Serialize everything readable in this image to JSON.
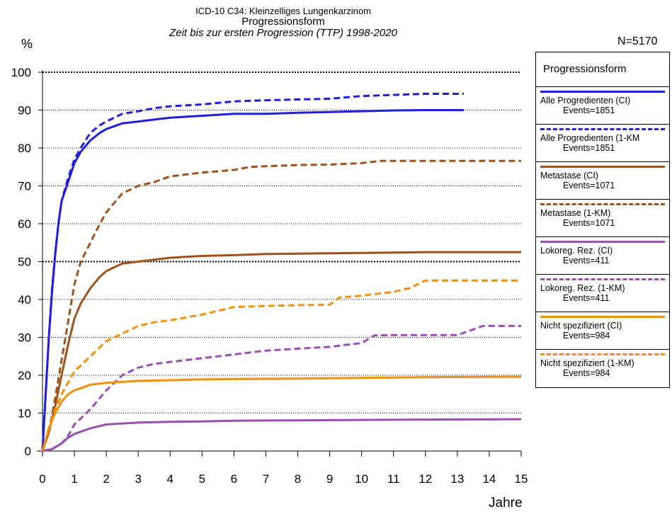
{
  "chart_data": {
    "type": "line",
    "title": "ICD-10 C34: Kleinzelliges Lungenkarzinom",
    "subtitle": "Progressionsform",
    "subtitle2": "Zeit bis zur ersten Progression (TTP) 1998-2020",
    "ylabel": "%",
    "xlabel": "Jahre",
    "n_label": "N=5170",
    "xlim": [
      0,
      15
    ],
    "ylim": [
      0,
      100
    ],
    "x_ticks": [
      "0",
      "1",
      "2",
      "3",
      "4",
      "5",
      "6",
      "7",
      "8",
      "9",
      "10",
      "11",
      "12",
      "13",
      "14",
      "15"
    ],
    "y_ticks": [
      "0",
      "10",
      "20",
      "30",
      "40",
      "50",
      "60",
      "70",
      "80",
      "90",
      "100"
    ],
    "grid": "horizontal dotted",
    "legend_title": "Progressionsform",
    "legend_position": "right",
    "series": [
      {
        "name": "Alle Progredienten (CI)",
        "events": "Events=1851",
        "color": "#1f1fe0",
        "dash": "solid",
        "points": [
          [
            0,
            0
          ],
          [
            0.1,
            15
          ],
          [
            0.2,
            30
          ],
          [
            0.3,
            42
          ],
          [
            0.4,
            52
          ],
          [
            0.5,
            60
          ],
          [
            0.6,
            66
          ],
          [
            0.8,
            71
          ],
          [
            1,
            76
          ],
          [
            1.2,
            79
          ],
          [
            1.5,
            82
          ],
          [
            1.8,
            84
          ],
          [
            2,
            85
          ],
          [
            2.5,
            86.5
          ],
          [
            3,
            87
          ],
          [
            3.5,
            87.5
          ],
          [
            4,
            88
          ],
          [
            5,
            88.5
          ],
          [
            6,
            89
          ],
          [
            7,
            89
          ],
          [
            8,
            89.3
          ],
          [
            9,
            89.5
          ],
          [
            10,
            89.7
          ],
          [
            11,
            89.9
          ],
          [
            12,
            90
          ],
          [
            13.2,
            90
          ]
        ]
      },
      {
        "name": "Alle Progredienten (1-KM",
        "events": "Events=1851",
        "color": "#1f1fe0",
        "dash": "dashed",
        "points": [
          [
            0,
            0
          ],
          [
            0.1,
            15
          ],
          [
            0.2,
            30
          ],
          [
            0.3,
            43
          ],
          [
            0.4,
            52
          ],
          [
            0.5,
            60
          ],
          [
            0.6,
            66
          ],
          [
            0.8,
            72
          ],
          [
            1,
            77
          ],
          [
            1.2,
            80
          ],
          [
            1.5,
            84
          ],
          [
            1.8,
            86
          ],
          [
            2,
            87
          ],
          [
            2.5,
            89
          ],
          [
            3,
            89.7
          ],
          [
            3.5,
            90.5
          ],
          [
            4,
            91
          ],
          [
            5,
            91.5
          ],
          [
            6,
            92.3
          ],
          [
            7,
            92.6
          ],
          [
            8,
            92.8
          ],
          [
            9,
            93
          ],
          [
            10,
            93.7
          ],
          [
            11,
            94
          ],
          [
            12,
            94.3
          ],
          [
            13.2,
            94.3
          ]
        ]
      },
      {
        "name": "Metastase (CI)",
        "events": "Events=1071",
        "color": "#a0521b",
        "dash": "solid",
        "points": [
          [
            0,
            0
          ],
          [
            0.2,
            5
          ],
          [
            0.4,
            12
          ],
          [
            0.6,
            20
          ],
          [
            0.8,
            28
          ],
          [
            1,
            35
          ],
          [
            1.2,
            39
          ],
          [
            1.5,
            43
          ],
          [
            1.8,
            46
          ],
          [
            2,
            47.5
          ],
          [
            2.5,
            49.5
          ],
          [
            3,
            50
          ],
          [
            3.5,
            50.5
          ],
          [
            4,
            51
          ],
          [
            5,
            51.5
          ],
          [
            6,
            51.7
          ],
          [
            7,
            52
          ],
          [
            8,
            52.1
          ],
          [
            9,
            52.2
          ],
          [
            10,
            52.3
          ],
          [
            11,
            52.4
          ],
          [
            12,
            52.5
          ],
          [
            13,
            52.5
          ],
          [
            15,
            52.5
          ]
        ]
      },
      {
        "name": "Metastase (1-KM)",
        "events": "Events=1071",
        "color": "#a0521b",
        "dash": "dashed",
        "points": [
          [
            0,
            0
          ],
          [
            0.2,
            5
          ],
          [
            0.4,
            14
          ],
          [
            0.6,
            24
          ],
          [
            0.8,
            34
          ],
          [
            1,
            44
          ],
          [
            1.2,
            50
          ],
          [
            1.5,
            55
          ],
          [
            1.8,
            60
          ],
          [
            2,
            63
          ],
          [
            2.5,
            68
          ],
          [
            3,
            70
          ],
          [
            3.5,
            71
          ],
          [
            4,
            72.5
          ],
          [
            5,
            73.5
          ],
          [
            6,
            74.2
          ],
          [
            6.5,
            75
          ],
          [
            7,
            75.2
          ],
          [
            8,
            75.5
          ],
          [
            9,
            75.6
          ],
          [
            10,
            76
          ],
          [
            10.6,
            76.6
          ],
          [
            11,
            76.6
          ],
          [
            13,
            76.6
          ],
          [
            15,
            76.6
          ]
        ]
      },
      {
        "name": "Lokoreg. Rez. (CI)",
        "events": "Events=411",
        "color": "#9b4fb0",
        "dash": "solid",
        "points": [
          [
            0,
            0
          ],
          [
            0.3,
            0.5
          ],
          [
            0.6,
            2
          ],
          [
            0.8,
            3.5
          ],
          [
            1,
            4.5
          ],
          [
            1.5,
            6
          ],
          [
            2,
            7
          ],
          [
            3,
            7.5
          ],
          [
            4,
            7.7
          ],
          [
            5,
            7.8
          ],
          [
            6,
            8
          ],
          [
            8,
            8.1
          ],
          [
            10,
            8.2
          ],
          [
            12,
            8.3
          ],
          [
            15,
            8.4
          ]
        ]
      },
      {
        "name": "Lokoreg. Rez. (1-KM)",
        "events": "Events=411",
        "color": "#9b4fb0",
        "dash": "dashed",
        "points": [
          [
            0,
            0
          ],
          [
            0.3,
            0.5
          ],
          [
            0.6,
            2
          ],
          [
            0.8,
            4
          ],
          [
            1,
            7
          ],
          [
            1.5,
            11
          ],
          [
            2,
            16
          ],
          [
            2.5,
            20
          ],
          [
            3,
            22
          ],
          [
            3.5,
            23
          ],
          [
            4,
            23.5
          ],
          [
            5,
            24.5
          ],
          [
            5.5,
            25
          ],
          [
            6,
            25.5
          ],
          [
            7,
            26.5
          ],
          [
            8,
            27
          ],
          [
            9,
            27.5
          ],
          [
            10,
            28.5
          ],
          [
            10.4,
            30.5
          ],
          [
            11,
            30.6
          ],
          [
            13,
            30.6
          ],
          [
            13.8,
            33
          ],
          [
            15,
            33
          ]
        ]
      },
      {
        "name": "Nicht spezifiziert (CI)",
        "events": "Events=984",
        "color": "#f5900a",
        "dash": "solid",
        "points": [
          [
            0,
            0
          ],
          [
            0.2,
            6
          ],
          [
            0.4,
            10
          ],
          [
            0.6,
            13
          ],
          [
            0.8,
            15
          ],
          [
            1,
            16
          ],
          [
            1.5,
            17.5
          ],
          [
            2,
            18
          ],
          [
            3,
            18.5
          ],
          [
            4,
            18.7
          ],
          [
            5,
            18.9
          ],
          [
            6,
            19
          ],
          [
            8,
            19.1
          ],
          [
            10,
            19.3
          ],
          [
            12,
            19.5
          ],
          [
            15,
            19.6
          ]
        ]
      },
      {
        "name": "Nicht spezifiziert (1-KM)",
        "events": "Events=984",
        "color": "#f5900a",
        "dash": "dashed",
        "points": [
          [
            0,
            0
          ],
          [
            0.2,
            6
          ],
          [
            0.4,
            11
          ],
          [
            0.6,
            15
          ],
          [
            0.8,
            18
          ],
          [
            1,
            21
          ],
          [
            1.5,
            25
          ],
          [
            2,
            29
          ],
          [
            2.5,
            31
          ],
          [
            3,
            33
          ],
          [
            3.5,
            34
          ],
          [
            4,
            34.5
          ],
          [
            5,
            36
          ],
          [
            5.5,
            37
          ],
          [
            6,
            38
          ],
          [
            7,
            38.3
          ],
          [
            8,
            38.5
          ],
          [
            9,
            38.6
          ],
          [
            9.3,
            40.5
          ],
          [
            10,
            41
          ],
          [
            11,
            42
          ],
          [
            11.5,
            43
          ],
          [
            12,
            45
          ],
          [
            13,
            45
          ],
          [
            15,
            45
          ]
        ]
      }
    ]
  }
}
